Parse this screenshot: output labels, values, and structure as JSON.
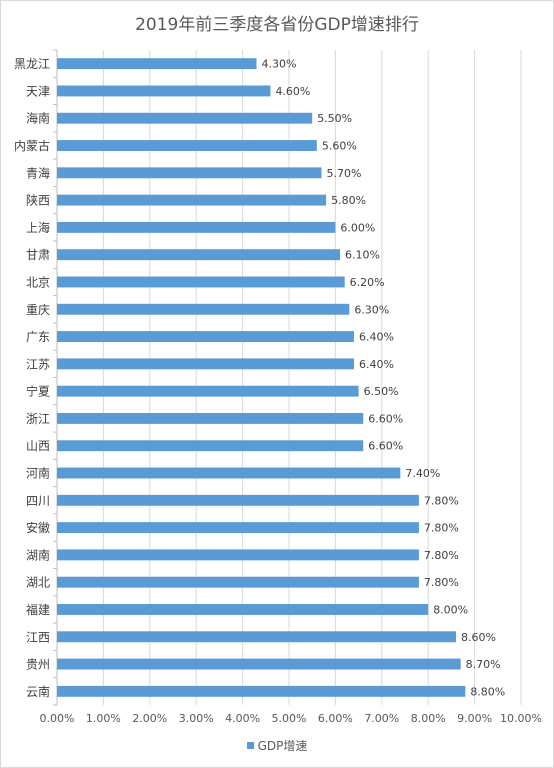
{
  "chart_data": {
    "type": "bar",
    "orientation": "horizontal",
    "title": "2019年前三季度各省份GDP增速排行",
    "xlabel": "",
    "ylabel": "",
    "xlim": [
      0,
      10
    ],
    "x_ticks": [
      "0.00%",
      "1.00%",
      "2.00%",
      "3.00%",
      "4.00%",
      "5.00%",
      "6.00%",
      "7.00%",
      "8.00%",
      "9.00%",
      "10.00%"
    ],
    "grid": true,
    "legend_position": "bottom",
    "categories": [
      "黑龙江",
      "天津",
      "海南",
      "内蒙古",
      "青海",
      "陕西",
      "上海",
      "甘肃",
      "北京",
      "重庆",
      "广东",
      "江苏",
      "宁夏",
      "浙江",
      "山西",
      "河南",
      "四川",
      "安徽",
      "湖南",
      "湖北",
      "福建",
      "江西",
      "贵州",
      "云南"
    ],
    "series": [
      {
        "name": "GDP增速",
        "color": "#5b9bd5",
        "values": [
          4.3,
          4.6,
          5.5,
          5.6,
          5.7,
          5.8,
          6.0,
          6.1,
          6.2,
          6.3,
          6.4,
          6.4,
          6.5,
          6.6,
          6.6,
          7.4,
          7.8,
          7.8,
          7.8,
          7.8,
          8.0,
          8.6,
          8.7,
          8.8
        ],
        "labels": [
          "4.30%",
          "4.60%",
          "5.50%",
          "5.60%",
          "5.70%",
          "5.80%",
          "6.00%",
          "6.10%",
          "6.20%",
          "6.30%",
          "6.40%",
          "6.40%",
          "6.50%",
          "6.60%",
          "6.60%",
          "7.40%",
          "7.80%",
          "7.80%",
          "7.80%",
          "7.80%",
          "8.00%",
          "8.60%",
          "8.70%",
          "8.80%"
        ]
      }
    ]
  }
}
